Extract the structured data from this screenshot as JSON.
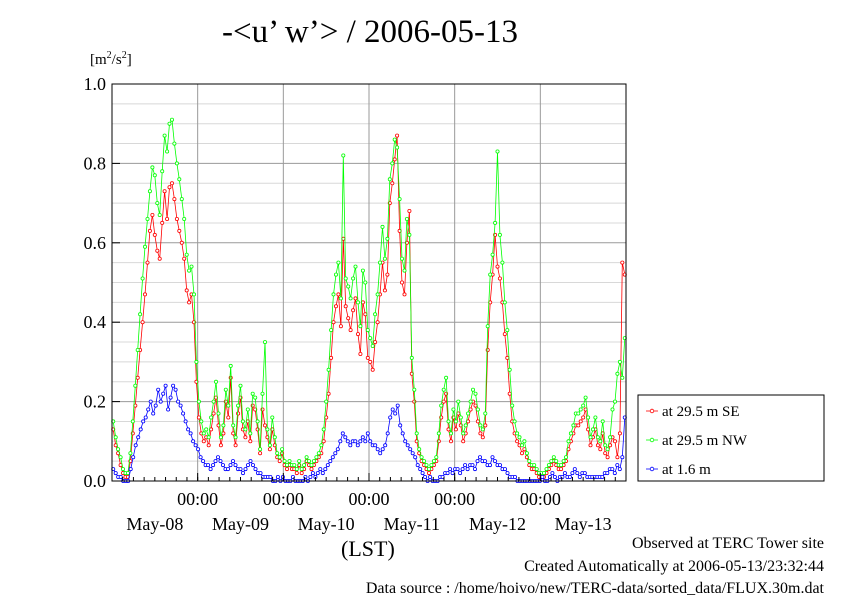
{
  "chart_data": {
    "type": "line",
    "title": "-<u’ w’> / 2006-05-13",
    "unit_base": "[m",
    "unit_sup1": "2",
    "unit_mid": "/s",
    "unit_sup2": "2",
    "unit_end": "]",
    "xlabel": "(LST)",
    "ylim": [
      0,
      1.0
    ],
    "y_ticks": [
      "0.0",
      "0.2",
      "0.4",
      "0.6",
      "0.8",
      "1.0"
    ],
    "x_range_hours": [
      0,
      144
    ],
    "x_midnight_hours": [
      24,
      48,
      72,
      96,
      120
    ],
    "x_time_label": "00:00",
    "x_date_labels": [
      "May-08",
      "May-09",
      "May-10",
      "May-11",
      "May-12",
      "May-13"
    ],
    "grid": true,
    "legend_position": "right",
    "series": [
      {
        "name": "at 29.5 m SE",
        "color": "#ff0000",
        "values": [
          0.13,
          0.09,
          0.07,
          0.04,
          0.02,
          0.01,
          0.01,
          0.05,
          0.12,
          0.19,
          0.26,
          0.33,
          0.4,
          0.47,
          0.55,
          0.63,
          0.67,
          0.62,
          0.58,
          0.56,
          0.65,
          0.73,
          0.66,
          0.74,
          0.75,
          0.71,
          0.66,
          0.63,
          0.6,
          0.56,
          0.48,
          0.45,
          0.47,
          0.4,
          0.25,
          0.16,
          0.12,
          0.1,
          0.11,
          0.09,
          0.13,
          0.17,
          0.21,
          0.14,
          0.09,
          0.12,
          0.2,
          0.16,
          0.26,
          0.12,
          0.09,
          0.17,
          0.21,
          0.13,
          0.11,
          0.15,
          0.1,
          0.19,
          0.18,
          0.13,
          0.07,
          0.18,
          0.14,
          0.11,
          0.08,
          0.13,
          0.09,
          0.06,
          0.05,
          0.07,
          0.04,
          0.03,
          0.04,
          0.03,
          0.03,
          0.02,
          0.04,
          0.02,
          0.03,
          0.05,
          0.04,
          0.03,
          0.04,
          0.05,
          0.06,
          0.07,
          0.1,
          0.16,
          0.22,
          0.31,
          0.4,
          0.44,
          0.47,
          0.39,
          0.61,
          0.44,
          0.41,
          0.38,
          0.43,
          0.46,
          0.37,
          0.32,
          0.45,
          0.42,
          0.31,
          0.3,
          0.28,
          0.35,
          0.4,
          0.47,
          0.55,
          0.48,
          0.52,
          0.7,
          0.75,
          0.81,
          0.87,
          0.63,
          0.5,
          0.47,
          0.6,
          0.68,
          0.27,
          0.2,
          0.1,
          0.07,
          0.05,
          0.04,
          0.03,
          0.02,
          0.03,
          0.04,
          0.05,
          0.1,
          0.16,
          0.2,
          0.22,
          0.13,
          0.1,
          0.16,
          0.13,
          0.17,
          0.14,
          0.1,
          0.12,
          0.15,
          0.18,
          0.2,
          0.19,
          0.15,
          0.12,
          0.11,
          0.14,
          0.33,
          0.45,
          0.52,
          0.62,
          0.54,
          0.51,
          0.45,
          0.37,
          0.31,
          0.22,
          0.15,
          0.12,
          0.1,
          0.09,
          0.07,
          0.08,
          0.06,
          0.04,
          0.03,
          0.03,
          0.02,
          0.01,
          0.01,
          0.01,
          0.02,
          0.03,
          0.04,
          0.05,
          0.04,
          0.03,
          0.03,
          0.04,
          0.05,
          0.08,
          0.1,
          0.12,
          0.14,
          0.14,
          0.15,
          0.16,
          0.18,
          0.13,
          0.09,
          0.11,
          0.13,
          0.09,
          0.08,
          0.12,
          0.07,
          0.06,
          0.09,
          0.11,
          0.1,
          0.06,
          0.12,
          0.55,
          0.52
        ]
      },
      {
        "name": "at 29.5 m NW",
        "color": "#00ff00",
        "values": [
          0.15,
          0.11,
          0.08,
          0.06,
          0.03,
          0.02,
          0.02,
          0.07,
          0.15,
          0.24,
          0.33,
          0.42,
          0.51,
          0.59,
          0.66,
          0.73,
          0.79,
          0.77,
          0.7,
          0.67,
          0.78,
          0.87,
          0.83,
          0.9,
          0.91,
          0.85,
          0.8,
          0.76,
          0.71,
          0.66,
          0.57,
          0.53,
          0.54,
          0.47,
          0.3,
          0.2,
          0.15,
          0.12,
          0.13,
          0.11,
          0.16,
          0.2,
          0.25,
          0.17,
          0.11,
          0.14,
          0.23,
          0.19,
          0.29,
          0.14,
          0.11,
          0.19,
          0.24,
          0.15,
          0.13,
          0.18,
          0.12,
          0.22,
          0.21,
          0.15,
          0.08,
          0.22,
          0.35,
          0.13,
          0.09,
          0.16,
          0.11,
          0.07,
          0.06,
          0.08,
          0.05,
          0.04,
          0.05,
          0.04,
          0.04,
          0.03,
          0.05,
          0.03,
          0.04,
          0.06,
          0.05,
          0.04,
          0.05,
          0.06,
          0.07,
          0.09,
          0.13,
          0.2,
          0.28,
          0.38,
          0.47,
          0.52,
          0.55,
          0.46,
          0.82,
          0.51,
          0.49,
          0.46,
          0.51,
          0.54,
          0.45,
          0.39,
          0.53,
          0.5,
          0.38,
          0.36,
          0.34,
          0.42,
          0.47,
          0.55,
          0.64,
          0.56,
          0.61,
          0.76,
          0.8,
          0.86,
          0.84,
          0.71,
          0.56,
          0.53,
          0.66,
          0.62,
          0.31,
          0.23,
          0.12,
          0.08,
          0.06,
          0.05,
          0.04,
          0.03,
          0.04,
          0.05,
          0.06,
          0.12,
          0.19,
          0.23,
          0.26,
          0.15,
          0.12,
          0.18,
          0.15,
          0.2,
          0.16,
          0.12,
          0.14,
          0.17,
          0.2,
          0.23,
          0.22,
          0.18,
          0.14,
          0.13,
          0.17,
          0.39,
          0.52,
          0.57,
          0.65,
          0.83,
          0.62,
          0.55,
          0.45,
          0.38,
          0.28,
          0.19,
          0.15,
          0.12,
          0.11,
          0.09,
          0.1,
          0.07,
          0.05,
          0.04,
          0.04,
          0.03,
          0.02,
          0.02,
          0.02,
          0.03,
          0.04,
          0.05,
          0.06,
          0.05,
          0.04,
          0.04,
          0.05,
          0.06,
          0.1,
          0.12,
          0.14,
          0.17,
          0.17,
          0.18,
          0.19,
          0.21,
          0.16,
          0.11,
          0.13,
          0.16,
          0.11,
          0.1,
          0.15,
          0.09,
          0.08,
          0.11,
          0.18,
          0.2,
          0.27,
          0.3,
          0.26,
          0.36
        ]
      },
      {
        "name": "at 1.6 m",
        "color": "#0000ff",
        "values": [
          0.03,
          0.02,
          0.01,
          0.01,
          0.0,
          0.0,
          0.0,
          0.03,
          0.06,
          0.09,
          0.11,
          0.13,
          0.15,
          0.16,
          0.18,
          0.2,
          0.17,
          0.19,
          0.23,
          0.2,
          0.22,
          0.24,
          0.18,
          0.21,
          0.24,
          0.23,
          0.2,
          0.19,
          0.17,
          0.15,
          0.13,
          0.12,
          0.1,
          0.09,
          0.08,
          0.06,
          0.05,
          0.04,
          0.04,
          0.03,
          0.04,
          0.05,
          0.06,
          0.05,
          0.04,
          0.03,
          0.03,
          0.04,
          0.05,
          0.04,
          0.03,
          0.03,
          0.02,
          0.03,
          0.04,
          0.05,
          0.04,
          0.03,
          0.02,
          0.02,
          0.01,
          0.01,
          0.01,
          0.01,
          0.0,
          0.0,
          0.01,
          0.0,
          0.01,
          0.0,
          0.0,
          0.0,
          0.01,
          0.0,
          0.0,
          0.0,
          0.0,
          0.01,
          0.0,
          0.01,
          0.02,
          0.01,
          0.02,
          0.03,
          0.02,
          0.03,
          0.04,
          0.05,
          0.06,
          0.07,
          0.08,
          0.1,
          0.12,
          0.11,
          0.1,
          0.09,
          0.1,
          0.1,
          0.09,
          0.1,
          0.11,
          0.1,
          0.12,
          0.1,
          0.09,
          0.09,
          0.08,
          0.07,
          0.08,
          0.09,
          0.12,
          0.16,
          0.18,
          0.17,
          0.19,
          0.14,
          0.12,
          0.1,
          0.09,
          0.08,
          0.07,
          0.06,
          0.04,
          0.03,
          0.02,
          0.01,
          0.0,
          0.01,
          0.0,
          0.0,
          0.0,
          0.01,
          0.01,
          0.02,
          0.02,
          0.03,
          0.02,
          0.03,
          0.03,
          0.02,
          0.03,
          0.04,
          0.03,
          0.04,
          0.04,
          0.03,
          0.05,
          0.06,
          0.05,
          0.05,
          0.04,
          0.04,
          0.06,
          0.05,
          0.04,
          0.04,
          0.03,
          0.03,
          0.02,
          0.01,
          0.01,
          0.01,
          0.0,
          0.0,
          0.0,
          0.0,
          0.0,
          0.0,
          0.0,
          0.0,
          0.0,
          0.0,
          0.01,
          0.0,
          0.0,
          0.01,
          0.02,
          0.01,
          0.0,
          0.01,
          0.01,
          0.02,
          0.01,
          0.01,
          0.02,
          0.03,
          0.02,
          0.01,
          0.02,
          0.02,
          0.01,
          0.01,
          0.01,
          0.01,
          0.01,
          0.01,
          0.01,
          0.02,
          0.02,
          0.03,
          0.03,
          0.02,
          0.04,
          0.03,
          0.06,
          0.16
        ]
      }
    ]
  },
  "footer": {
    "line1": "Observed at TERC Tower site",
    "line2": "Created Automatically at 2006-05-13/23:32:44",
    "line3": "Data source : /home/hoivo/new/TERC-data/sorted_data/FLUX.30m.dat"
  }
}
